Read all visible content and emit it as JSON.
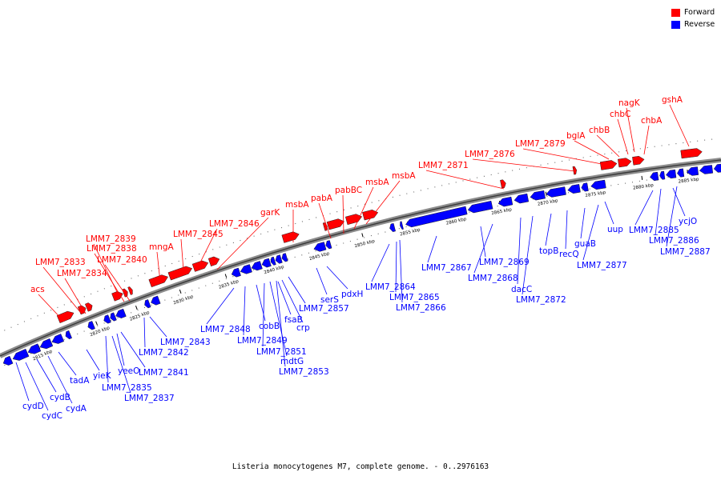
{
  "title": "Listeria monocytogenes M7, complete genome. - 0..2976163",
  "legend": {
    "forward_label": "Forward",
    "reverse_label": "Reverse",
    "forward_color": "#ff0000",
    "reverse_color": "#0000ff"
  },
  "strand_colors": {
    "forward": "#ff0000",
    "reverse": "#0000ff"
  },
  "ruler_ticks": [
    "2815 kbp",
    "2820 kbp",
    "2825 kbp",
    "2830 kbp",
    "2835 kbp",
    "2840 kbp",
    "2845 kbp",
    "2850 kbp",
    "2855 kbp",
    "2860 kbp",
    "2865 kbp",
    "2870 kbp",
    "2875 kbp",
    "2880 kbp",
    "2885 kbp"
  ],
  "forward_genes": [
    {
      "label": "acs"
    },
    {
      "label": "LMM7_2834"
    },
    {
      "label": "LMM7_2833"
    },
    {
      "label": "LMM7_2839"
    },
    {
      "label": "LMM7_2838"
    },
    {
      "label": "LMM7_2840"
    },
    {
      "label": "mngA"
    },
    {
      "label": "LMM7_2845"
    },
    {
      "label": "LMM7_2846"
    },
    {
      "label": "garK"
    },
    {
      "label": "msbA"
    },
    {
      "label": "pabA"
    },
    {
      "label": "pabBC"
    },
    {
      "label": "msbA"
    },
    {
      "label": "msbA"
    },
    {
      "label": "LMM7_2871"
    },
    {
      "label": "LMM7_2876"
    },
    {
      "label": "LMM7_2879"
    },
    {
      "label": "bglA"
    },
    {
      "label": "chbB"
    },
    {
      "label": "chbC"
    },
    {
      "label": "nagK"
    },
    {
      "label": "chbA"
    },
    {
      "label": "gshA"
    }
  ],
  "reverse_genes": [
    {
      "label": "cydD"
    },
    {
      "label": "cydC"
    },
    {
      "label": "cydB"
    },
    {
      "label": "cydA"
    },
    {
      "label": "tadA"
    },
    {
      "label": "yieK"
    },
    {
      "label": "LMM7_2835"
    },
    {
      "label": "LMM7_2837"
    },
    {
      "label": "yeeO"
    },
    {
      "label": "LMM7_2841"
    },
    {
      "label": "LMM7_2842"
    },
    {
      "label": "LMM7_2843"
    },
    {
      "label": "LMM7_2848"
    },
    {
      "label": "LMM7_2849"
    },
    {
      "label": "cobB"
    },
    {
      "label": "LMM7_2851"
    },
    {
      "label": "mdtG"
    },
    {
      "label": "LMM7_2853"
    },
    {
      "label": "fsaB"
    },
    {
      "label": "crp"
    },
    {
      "label": "LMM7_2857"
    },
    {
      "label": "serS"
    },
    {
      "label": "pdxH"
    },
    {
      "label": "LMM7_2864"
    },
    {
      "label": "LMM7_2865"
    },
    {
      "label": "LMM7_2866"
    },
    {
      "label": "LMM7_2867"
    },
    {
      "label": "LMM7_2869"
    },
    {
      "label": "LMM7_2868"
    },
    {
      "label": "dacC"
    },
    {
      "label": "LMM7_2872"
    },
    {
      "label": "topB"
    },
    {
      "label": "recQ"
    },
    {
      "label": "guaB"
    },
    {
      "label": "LMM7_2877"
    },
    {
      "label": "uup"
    },
    {
      "label": "LMM7_2885"
    },
    {
      "label": "LMM7_2886"
    },
    {
      "label": "ycjO"
    },
    {
      "label": "LMM7_2887"
    }
  ]
}
